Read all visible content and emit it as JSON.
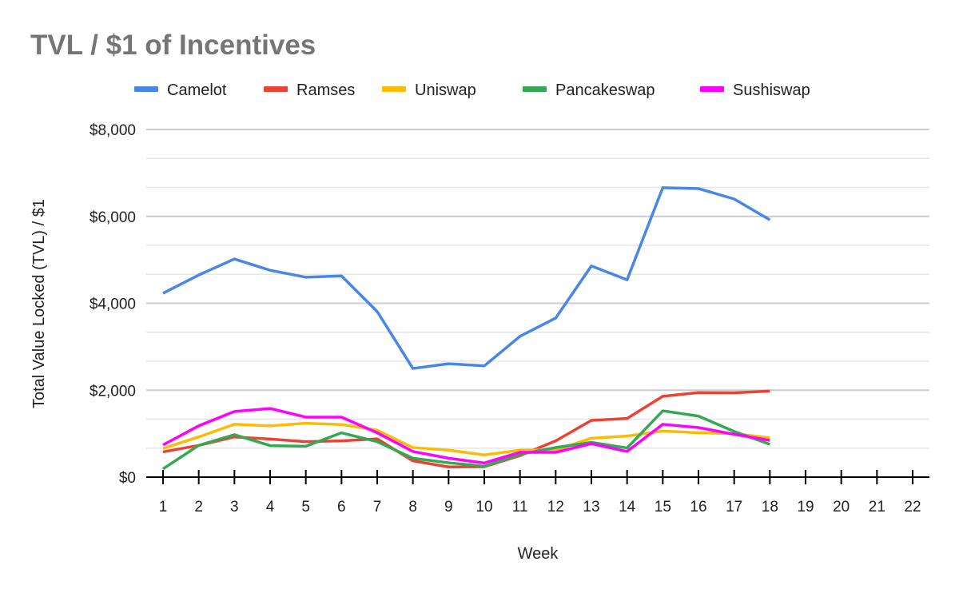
{
  "chart_data": {
    "type": "line",
    "title": "TVL / $1 of Incentives",
    "xlabel": "Week",
    "ylabel": "Total Value Locked (TVL) / $1",
    "ylim": [
      0,
      8000
    ],
    "y_ticks": [
      {
        "value": 0,
        "label": "$0"
      },
      {
        "value": 2000,
        "label": "$2,000"
      },
      {
        "value": 4000,
        "label": "$4,000"
      },
      {
        "value": 6000,
        "label": "$6,000"
      },
      {
        "value": 8000,
        "label": "$8,000"
      }
    ],
    "x_ticks": [
      "1",
      "2",
      "3",
      "4",
      "5",
      "6",
      "7",
      "8",
      "9",
      "10",
      "11",
      "12",
      "13",
      "14",
      "15",
      "16",
      "17",
      "18",
      "19",
      "20",
      "21",
      "22"
    ],
    "x": [
      1,
      2,
      3,
      4,
      5,
      6,
      7,
      8,
      9,
      10,
      11,
      12,
      13,
      14,
      15,
      16,
      17,
      18
    ],
    "grid": true,
    "legend": "top",
    "series": [
      {
        "name": "Camelot",
        "color": "#4a86e8",
        "values": [
          4230,
          4650,
          5020,
          4760,
          4600,
          4630,
          3810,
          2500,
          2610,
          2560,
          3240,
          3660,
          4860,
          4540,
          6660,
          6640,
          6400,
          5920
        ]
      },
      {
        "name": "Ramses",
        "color": "#ea4335",
        "values": [
          580,
          730,
          925,
          875,
          815,
          835,
          880,
          375,
          235,
          240,
          495,
          835,
          1305,
          1350,
          1860,
          1945,
          1940,
          1980
        ]
      },
      {
        "name": "Uniswap",
        "color": "#fbbc04",
        "values": [
          660,
          925,
          1215,
          1180,
          1240,
          1210,
          1080,
          680,
          620,
          510,
          620,
          620,
          895,
          945,
          1060,
          1020,
          1000,
          905
        ]
      },
      {
        "name": "Pancakeswap",
        "color": "#34a853",
        "values": [
          190,
          730,
          975,
          725,
          710,
          1020,
          815,
          435,
          330,
          250,
          525,
          680,
          800,
          670,
          1525,
          1405,
          1050,
          755
        ]
      },
      {
        "name": "Sushiswap",
        "color": "#ff00ff",
        "values": [
          740,
          1180,
          1510,
          1580,
          1380,
          1380,
          1020,
          590,
          435,
          325,
          570,
          570,
          770,
          590,
          1215,
          1140,
          985,
          845
        ]
      }
    ]
  }
}
